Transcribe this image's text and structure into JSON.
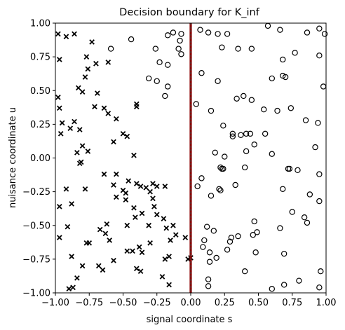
{
  "chart_data": {
    "type": "scatter",
    "title": "Decision boundary for K_inf",
    "xlabel": "signal coordinate  s",
    "ylabel": "nuisance coordinate  u",
    "xlim": [
      -1.0,
      1.0
    ],
    "ylim": [
      -1.0,
      1.0
    ],
    "x_ticks": [
      -1.0,
      -0.75,
      -0.5,
      -0.25,
      0.0,
      0.25,
      0.5,
      0.75,
      1.0
    ],
    "y_ticks": [
      -1.0,
      -0.75,
      -0.5,
      -0.25,
      0.0,
      0.25,
      0.5,
      0.75,
      1.0
    ],
    "x_tick_labels": [
      "−1.00",
      "−0.75",
      "−0.50",
      "−0.25",
      "0.00",
      "0.25",
      "0.50",
      "0.75",
      "1.00"
    ],
    "y_tick_labels": [
      "−1.00",
      "−0.75",
      "−0.50",
      "−0.25",
      "0.00",
      "0.25",
      "0.50",
      "0.75",
      "1.00"
    ],
    "grid": false,
    "boundary": {
      "x": 0.0,
      "colors": [
        "#8b0000",
        "#444444"
      ]
    },
    "series": [
      {
        "marker": "x",
        "color": "#000000",
        "points": [
          [
            -0.98,
            0.92
          ],
          [
            -0.92,
            0.9
          ],
          [
            -0.86,
            0.92
          ],
          [
            -0.73,
            0.86
          ],
          [
            -0.77,
            0.75
          ],
          [
            -0.97,
            0.73
          ],
          [
            -0.7,
            0.7
          ],
          [
            -0.61,
            0.71
          ],
          [
            -0.76,
            0.66
          ],
          [
            -0.78,
            0.6
          ],
          [
            -0.83,
            0.52
          ],
          [
            -0.8,
            0.49
          ],
          [
            -0.98,
            0.45
          ],
          [
            -0.69,
            0.48
          ],
          [
            -0.71,
            0.38
          ],
          [
            -0.64,
            0.37
          ],
          [
            -0.61,
            0.33
          ],
          [
            -0.55,
            0.29
          ],
          [
            -0.4,
            0.4
          ],
          [
            -0.4,
            0.38
          ],
          [
            -0.97,
            0.37
          ],
          [
            -0.95,
            0.26
          ],
          [
            -0.86,
            0.27
          ],
          [
            -0.82,
            0.21
          ],
          [
            -0.89,
            0.22
          ],
          [
            -0.96,
            0.18
          ],
          [
            -0.5,
            0.18
          ],
          [
            -0.47,
            0.16
          ],
          [
            -0.57,
            0.12
          ],
          [
            -0.8,
            0.09
          ],
          [
            -0.76,
            0.05
          ],
          [
            -0.84,
            0.04
          ],
          [
            -0.81,
            -0.03
          ],
          [
            -0.82,
            -0.04
          ],
          [
            -0.42,
            0.02
          ],
          [
            -0.64,
            -0.12
          ],
          [
            -0.55,
            -0.12
          ],
          [
            -0.46,
            -0.17
          ],
          [
            -0.4,
            -0.19
          ],
          [
            -0.37,
            -0.21
          ],
          [
            -0.28,
            -0.19
          ],
          [
            -0.33,
            -0.22
          ],
          [
            -0.25,
            -0.21
          ],
          [
            -0.19,
            -0.21
          ],
          [
            -0.5,
            -0.24
          ],
          [
            -0.57,
            -0.2
          ],
          [
            -0.78,
            -0.23
          ],
          [
            -0.48,
            -0.26
          ],
          [
            -0.3,
            -0.25
          ],
          [
            -0.92,
            -0.23
          ],
          [
            -0.97,
            -0.36
          ],
          [
            -0.88,
            -0.34
          ],
          [
            -0.55,
            -0.29
          ],
          [
            -0.48,
            -0.31
          ],
          [
            -0.42,
            -0.37
          ],
          [
            -0.41,
            -0.44
          ],
          [
            -0.36,
            -0.41
          ],
          [
            -0.28,
            -0.3
          ],
          [
            -0.27,
            -0.36
          ],
          [
            -0.25,
            -0.42
          ],
          [
            -0.2,
            -0.45
          ],
          [
            -0.18,
            -0.52
          ],
          [
            -0.31,
            -0.5
          ],
          [
            -0.47,
            -0.5
          ],
          [
            -0.62,
            -0.49
          ],
          [
            -0.67,
            -0.53
          ],
          [
            -0.63,
            -0.56
          ],
          [
            -0.97,
            -0.59
          ],
          [
            -0.91,
            -0.51
          ],
          [
            -0.77,
            -0.63
          ],
          [
            -0.75,
            -0.63
          ],
          [
            -0.6,
            -0.61
          ],
          [
            -0.47,
            -0.69
          ],
          [
            -0.43,
            -0.69
          ],
          [
            -0.36,
            -0.7
          ],
          [
            -0.38,
            -0.66
          ],
          [
            -0.3,
            -0.63
          ],
          [
            -0.15,
            -0.61
          ],
          [
            -0.13,
            -0.5
          ],
          [
            -0.11,
            -0.57
          ],
          [
            -0.04,
            -0.59
          ],
          [
            -0.88,
            -0.73
          ],
          [
            -0.8,
            -0.8
          ],
          [
            -0.68,
            -0.8
          ],
          [
            -0.65,
            -0.83
          ],
          [
            -0.57,
            -0.76
          ],
          [
            -0.4,
            -0.82
          ],
          [
            -0.37,
            -0.84
          ],
          [
            -0.19,
            -0.75
          ],
          [
            -0.16,
            -0.73
          ],
          [
            -0.21,
            -0.88
          ],
          [
            -0.16,
            -0.94
          ],
          [
            -0.84,
            -0.89
          ],
          [
            -0.87,
            -0.96
          ],
          [
            -0.9,
            -0.97
          ],
          [
            -0.02,
            -0.75
          ],
          [
            0.0,
            -0.74
          ]
        ]
      },
      {
        "marker": "o",
        "color": "#000000",
        "points": [
          [
            -0.59,
            0.81
          ],
          [
            -0.44,
            0.88
          ],
          [
            -0.26,
            0.81
          ],
          [
            -0.23,
            0.71
          ],
          [
            -0.17,
            0.91
          ],
          [
            -0.13,
            0.93
          ],
          [
            -0.08,
            0.87
          ],
          [
            -0.07,
            0.92
          ],
          [
            -0.09,
            0.81
          ],
          [
            -0.07,
            0.77
          ],
          [
            -0.17,
            0.69
          ],
          [
            -0.31,
            0.59
          ],
          [
            -0.25,
            0.57
          ],
          [
            -0.17,
            0.53
          ],
          [
            -0.19,
            0.46
          ],
          [
            0.07,
            0.95
          ],
          [
            0.13,
            0.93
          ],
          [
            0.2,
            0.92
          ],
          [
            0.27,
            0.92
          ],
          [
            0.23,
            0.82
          ],
          [
            0.35,
            0.81
          ],
          [
            0.45,
            0.81
          ],
          [
            0.57,
            0.98
          ],
          [
            0.66,
            0.95
          ],
          [
            0.86,
            0.93
          ],
          [
            0.95,
            0.96
          ],
          [
            0.99,
            0.92
          ],
          [
            0.77,
            0.78
          ],
          [
            0.95,
            0.76
          ],
          [
            0.68,
            0.73
          ],
          [
            0.6,
            0.59
          ],
          [
            0.68,
            0.61
          ],
          [
            0.7,
            0.6
          ],
          [
            0.98,
            0.53
          ],
          [
            0.08,
            0.63
          ],
          [
            0.2,
            0.57
          ],
          [
            0.34,
            0.44
          ],
          [
            0.39,
            0.46
          ],
          [
            0.45,
            0.43
          ],
          [
            0.54,
            0.36
          ],
          [
            0.64,
            0.35
          ],
          [
            0.74,
            0.37
          ],
          [
            0.04,
            0.4
          ],
          [
            0.15,
            0.35
          ],
          [
            0.85,
            0.28
          ],
          [
            0.94,
            0.26
          ],
          [
            0.24,
            0.24
          ],
          [
            0.31,
            0.18
          ],
          [
            0.31,
            0.16
          ],
          [
            0.37,
            0.17
          ],
          [
            0.41,
            0.18
          ],
          [
            0.44,
            0.18
          ],
          [
            0.55,
            0.18
          ],
          [
            0.47,
            0.1
          ],
          [
            0.41,
            0.05
          ],
          [
            0.18,
            0.04
          ],
          [
            0.25,
            0.01
          ],
          [
            0.6,
            0.03
          ],
          [
            0.92,
            0.08
          ],
          [
            0.22,
            -0.07
          ],
          [
            0.23,
            -0.08
          ],
          [
            0.24,
            -0.08
          ],
          [
            0.4,
            -0.07
          ],
          [
            0.72,
            -0.08
          ],
          [
            0.73,
            -0.08
          ],
          [
            0.79,
            -0.09
          ],
          [
            0.95,
            -0.12
          ],
          [
            0.68,
            -0.23
          ],
          [
            0.33,
            -0.2
          ],
          [
            0.21,
            -0.23
          ],
          [
            0.22,
            -0.24
          ],
          [
            0.08,
            -0.15
          ],
          [
            0.05,
            -0.21
          ],
          [
            0.15,
            -0.28
          ],
          [
            0.88,
            -0.27
          ],
          [
            0.95,
            -0.32
          ],
          [
            0.75,
            -0.4
          ],
          [
            0.84,
            -0.44
          ],
          [
            0.86,
            -0.48
          ],
          [
            0.66,
            -0.52
          ],
          [
            0.47,
            -0.47
          ],
          [
            0.49,
            -0.55
          ],
          [
            0.46,
            -0.57
          ],
          [
            0.35,
            -0.58
          ],
          [
            0.3,
            -0.59
          ],
          [
            0.29,
            -0.62
          ],
          [
            0.27,
            -0.68
          ],
          [
            0.48,
            -0.7
          ],
          [
            0.17,
            -0.54
          ],
          [
            0.12,
            -0.51
          ],
          [
            0.1,
            -0.61
          ],
          [
            0.09,
            -0.66
          ],
          [
            0.14,
            -0.7
          ],
          [
            0.19,
            -0.74
          ],
          [
            0.69,
            -0.71
          ],
          [
            0.14,
            -0.77
          ],
          [
            0.13,
            -0.9
          ],
          [
            0.13,
            -0.95
          ],
          [
            0.6,
            -0.97
          ],
          [
            0.69,
            -0.94
          ],
          [
            0.8,
            -0.91
          ],
          [
            0.96,
            -0.84
          ],
          [
            0.95,
            -0.96
          ],
          [
            0.4,
            -0.84
          ]
        ]
      }
    ]
  }
}
